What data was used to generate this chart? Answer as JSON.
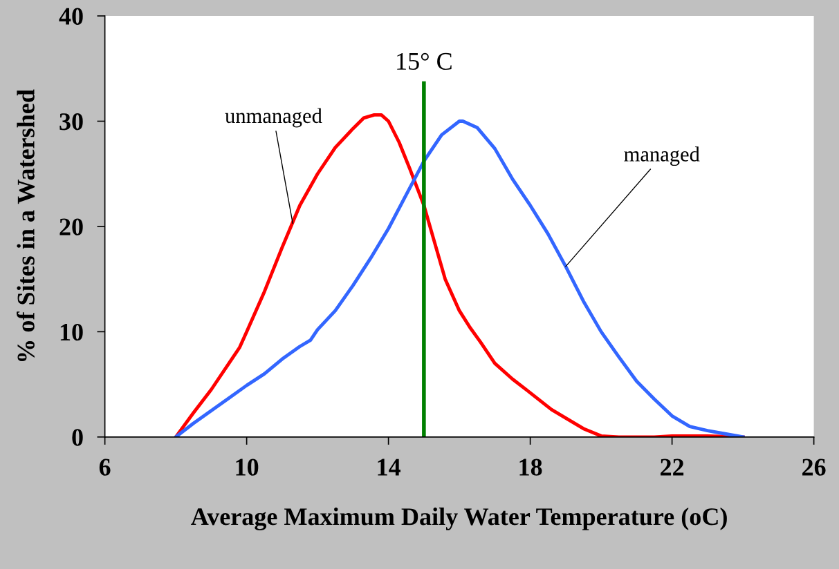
{
  "chart_data": {
    "type": "line",
    "xlabel": "Average Maximum Daily Water Temperature (oC)",
    "ylabel": "% of Sites in a Watershed",
    "xlim": [
      6,
      26
    ],
    "xticks": [
      6,
      10,
      14,
      18,
      22,
      26
    ],
    "ylim": [
      0,
      40
    ],
    "yticks": [
      0,
      10,
      20,
      30,
      40
    ],
    "grid": false,
    "legend": false,
    "marker": "none",
    "line_style": "solid",
    "series": [
      {
        "color": "#ff0000",
        "x": [
          8,
          8.5,
          9,
          9.5,
          9.8,
          10,
          10.5,
          11,
          11.5,
          12,
          12.5,
          13,
          13.3,
          13.6,
          13.8,
          14,
          14.3,
          14.6,
          15,
          15.3,
          15.6,
          16,
          16.3,
          16.6,
          17,
          17.5,
          18,
          18.6,
          19,
          19.5,
          20,
          20.5,
          21,
          21.5,
          22,
          23,
          24
        ],
        "values": [
          0,
          2.3,
          4.5,
          7,
          8.5,
          10,
          13.8,
          18,
          22,
          25,
          27.5,
          29.3,
          30.3,
          30.6,
          30.6,
          30,
          28,
          25.5,
          22,
          18.5,
          15,
          12,
          10.4,
          9,
          7,
          5.5,
          4.2,
          2.6,
          1.8,
          0.8,
          0.1,
          0,
          0,
          0,
          0.1,
          0.1,
          0
        ]
      },
      {
        "color": "#3366ff",
        "x": [
          8,
          8.5,
          9,
          9.5,
          10,
          10.5,
          11,
          11.5,
          11.8,
          12,
          12.5,
          13,
          13.5,
          14,
          14.5,
          15,
          15.5,
          16,
          16.1,
          16.5,
          17,
          17.5,
          18,
          18.5,
          19,
          19.5,
          20,
          20.5,
          21,
          21.5,
          22,
          22.5,
          23,
          23.5,
          24
        ],
        "values": [
          0,
          1.3,
          2.5,
          3.7,
          4.9,
          6,
          7.4,
          8.6,
          9.2,
          10.2,
          12,
          14.4,
          17,
          19.8,
          23,
          26.2,
          28.7,
          30,
          30,
          29.4,
          27.4,
          24.5,
          22,
          19.3,
          16.2,
          12.9,
          10,
          7.6,
          5.3,
          3.6,
          2,
          1,
          0.6,
          0.3,
          0
        ]
      }
    ],
    "ref_lines": [
      {
        "axis": "x",
        "value": 15,
        "label": "15° C",
        "color": "#008000"
      }
    ],
    "annotations": [
      {
        "text": "unmanaged",
        "x": 11.3,
        "y": 20.3
      },
      {
        "text": "managed",
        "x": 19,
        "y": 16.2
      }
    ]
  }
}
